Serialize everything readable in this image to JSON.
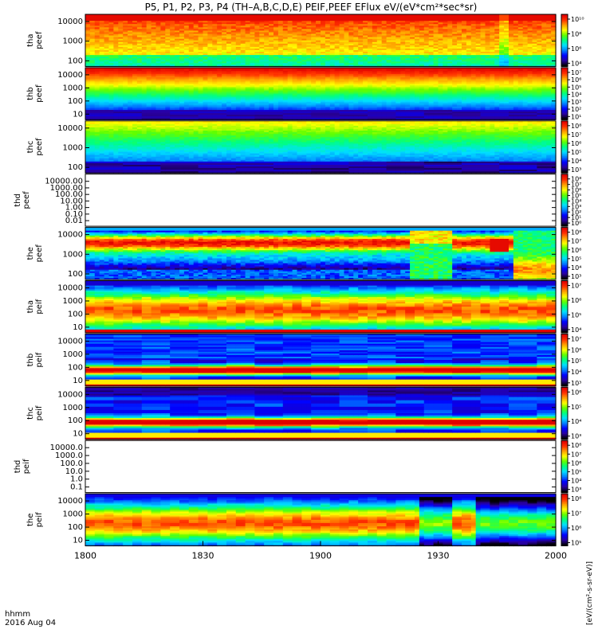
{
  "title": "P5, P1, P2, P3, P4 (TH–A,B,C,D,E) PEIF,PEEF EFlux eV/(eV*cm²*sec*sr)",
  "footer": {
    "axis_unit_label": "hhmm",
    "date_label": "2016 Aug 04",
    "x_tick_labels": [
      "1800",
      "1830",
      "1900",
      "1930",
      "2000"
    ]
  },
  "colorbar_unit_label": "[eV/(cm²-s-sr-eV)]",
  "colormap": [
    "#000000",
    "#2a00a0",
    "#0000ff",
    "#0080ff",
    "#00e0ff",
    "#00ff80",
    "#60ff00",
    "#ffff00",
    "#ffa000",
    "#ff3000",
    "#e00000"
  ],
  "chart_data": {
    "type": "heatmap",
    "x_range": [
      "1800",
      "2000"
    ],
    "x_ticks": [
      "1800",
      "1830",
      "1900",
      "1930",
      "2000"
    ],
    "panels": [
      {
        "name": "tha peef",
        "ylabel": [
          "tha",
          "peef"
        ],
        "yticks": [
          "10000",
          "1000",
          "100"
        ],
        "log_y": true,
        "colorbar_ticks": [
          "10¹⁰",
          "10⁸",
          "10⁶",
          "10⁴"
        ],
        "has_data": true,
        "pattern": "tha_peef"
      },
      {
        "name": "thb peef",
        "ylabel": [
          "thb",
          "peef"
        ],
        "yticks": [
          "10000",
          "1000",
          "100",
          "10"
        ],
        "log_y": true,
        "colorbar_ticks": [
          "10⁷",
          "10⁶",
          "10⁵",
          "10⁴",
          "10³",
          "10²",
          "10¹"
        ],
        "has_data": true,
        "pattern": "thb_peef"
      },
      {
        "name": "thc peef",
        "ylabel": [
          "thc",
          "peef"
        ],
        "yticks": [
          "10000",
          "1000",
          "100"
        ],
        "log_y": true,
        "colorbar_ticks": [
          "10⁸",
          "10⁷",
          "10⁶",
          "10⁵",
          "10⁴",
          "10³"
        ],
        "has_data": true,
        "pattern": "thc_peef"
      },
      {
        "name": "thd peef",
        "ylabel": [
          "thd",
          "peef"
        ],
        "yticks": [
          "10000.00",
          "1000.00",
          "100.00",
          "10.00",
          "1.00",
          "0.10",
          "0.01"
        ],
        "log_y": true,
        "colorbar_ticks": [
          "10⁸",
          "10⁷",
          "10⁶",
          "10⁵",
          "10⁴",
          "10³",
          "10²",
          "10¹",
          "10⁰"
        ],
        "has_data": false,
        "pattern": "empty"
      },
      {
        "name": "the peef",
        "ylabel": [
          "the",
          "peef"
        ],
        "yticks": [
          "10000",
          "1000",
          "100"
        ],
        "log_y": true,
        "colorbar_ticks": [
          "10⁸",
          "10⁷",
          "10⁶",
          "10⁵",
          "10⁴",
          "10³"
        ],
        "has_data": true,
        "pattern": "the_peef"
      },
      {
        "name": "tha peif",
        "ylabel": [
          "tha",
          "peif"
        ],
        "yticks": [
          "10000",
          "1000",
          "100",
          "10"
        ],
        "log_y": true,
        "colorbar_ticks": [
          "10⁷",
          "10⁶",
          "10⁵",
          "10⁴"
        ],
        "has_data": true,
        "pattern": "tha_peif"
      },
      {
        "name": "thb peif",
        "ylabel": [
          "thb",
          "peif"
        ],
        "yticks": [
          "10000",
          "1000",
          "100",
          "10"
        ],
        "log_y": true,
        "colorbar_ticks": [
          "10⁷",
          "10⁶",
          "10⁵",
          "10⁴",
          "10³"
        ],
        "has_data": true,
        "pattern": "thb_peif"
      },
      {
        "name": "thc peif",
        "ylabel": [
          "thc",
          "peif"
        ],
        "yticks": [
          "10000",
          "1000",
          "100",
          "10"
        ],
        "log_y": true,
        "colorbar_ticks": [
          "10⁶",
          "10⁵",
          "10⁴",
          "10³"
        ],
        "has_data": true,
        "pattern": "thc_peif"
      },
      {
        "name": "thd peif",
        "ylabel": [
          "thd",
          "peif"
        ],
        "yticks": [
          "10000.0",
          "1000.0",
          "100.0",
          "10.0",
          "1.0",
          "0.1"
        ],
        "log_y": true,
        "colorbar_ticks": [
          "10⁸",
          "10⁷",
          "10⁶",
          "10⁵",
          "10⁴",
          "10³"
        ],
        "has_data": false,
        "pattern": "empty"
      },
      {
        "name": "the peif",
        "ylabel": [
          "the",
          "peif"
        ],
        "yticks": [
          "10000",
          "1000",
          "100",
          "10"
        ],
        "log_y": true,
        "colorbar_ticks": [
          "10⁸",
          "10⁷",
          "10⁶",
          "10⁵"
        ],
        "has_data": true,
        "pattern": "the_peif"
      }
    ]
  }
}
